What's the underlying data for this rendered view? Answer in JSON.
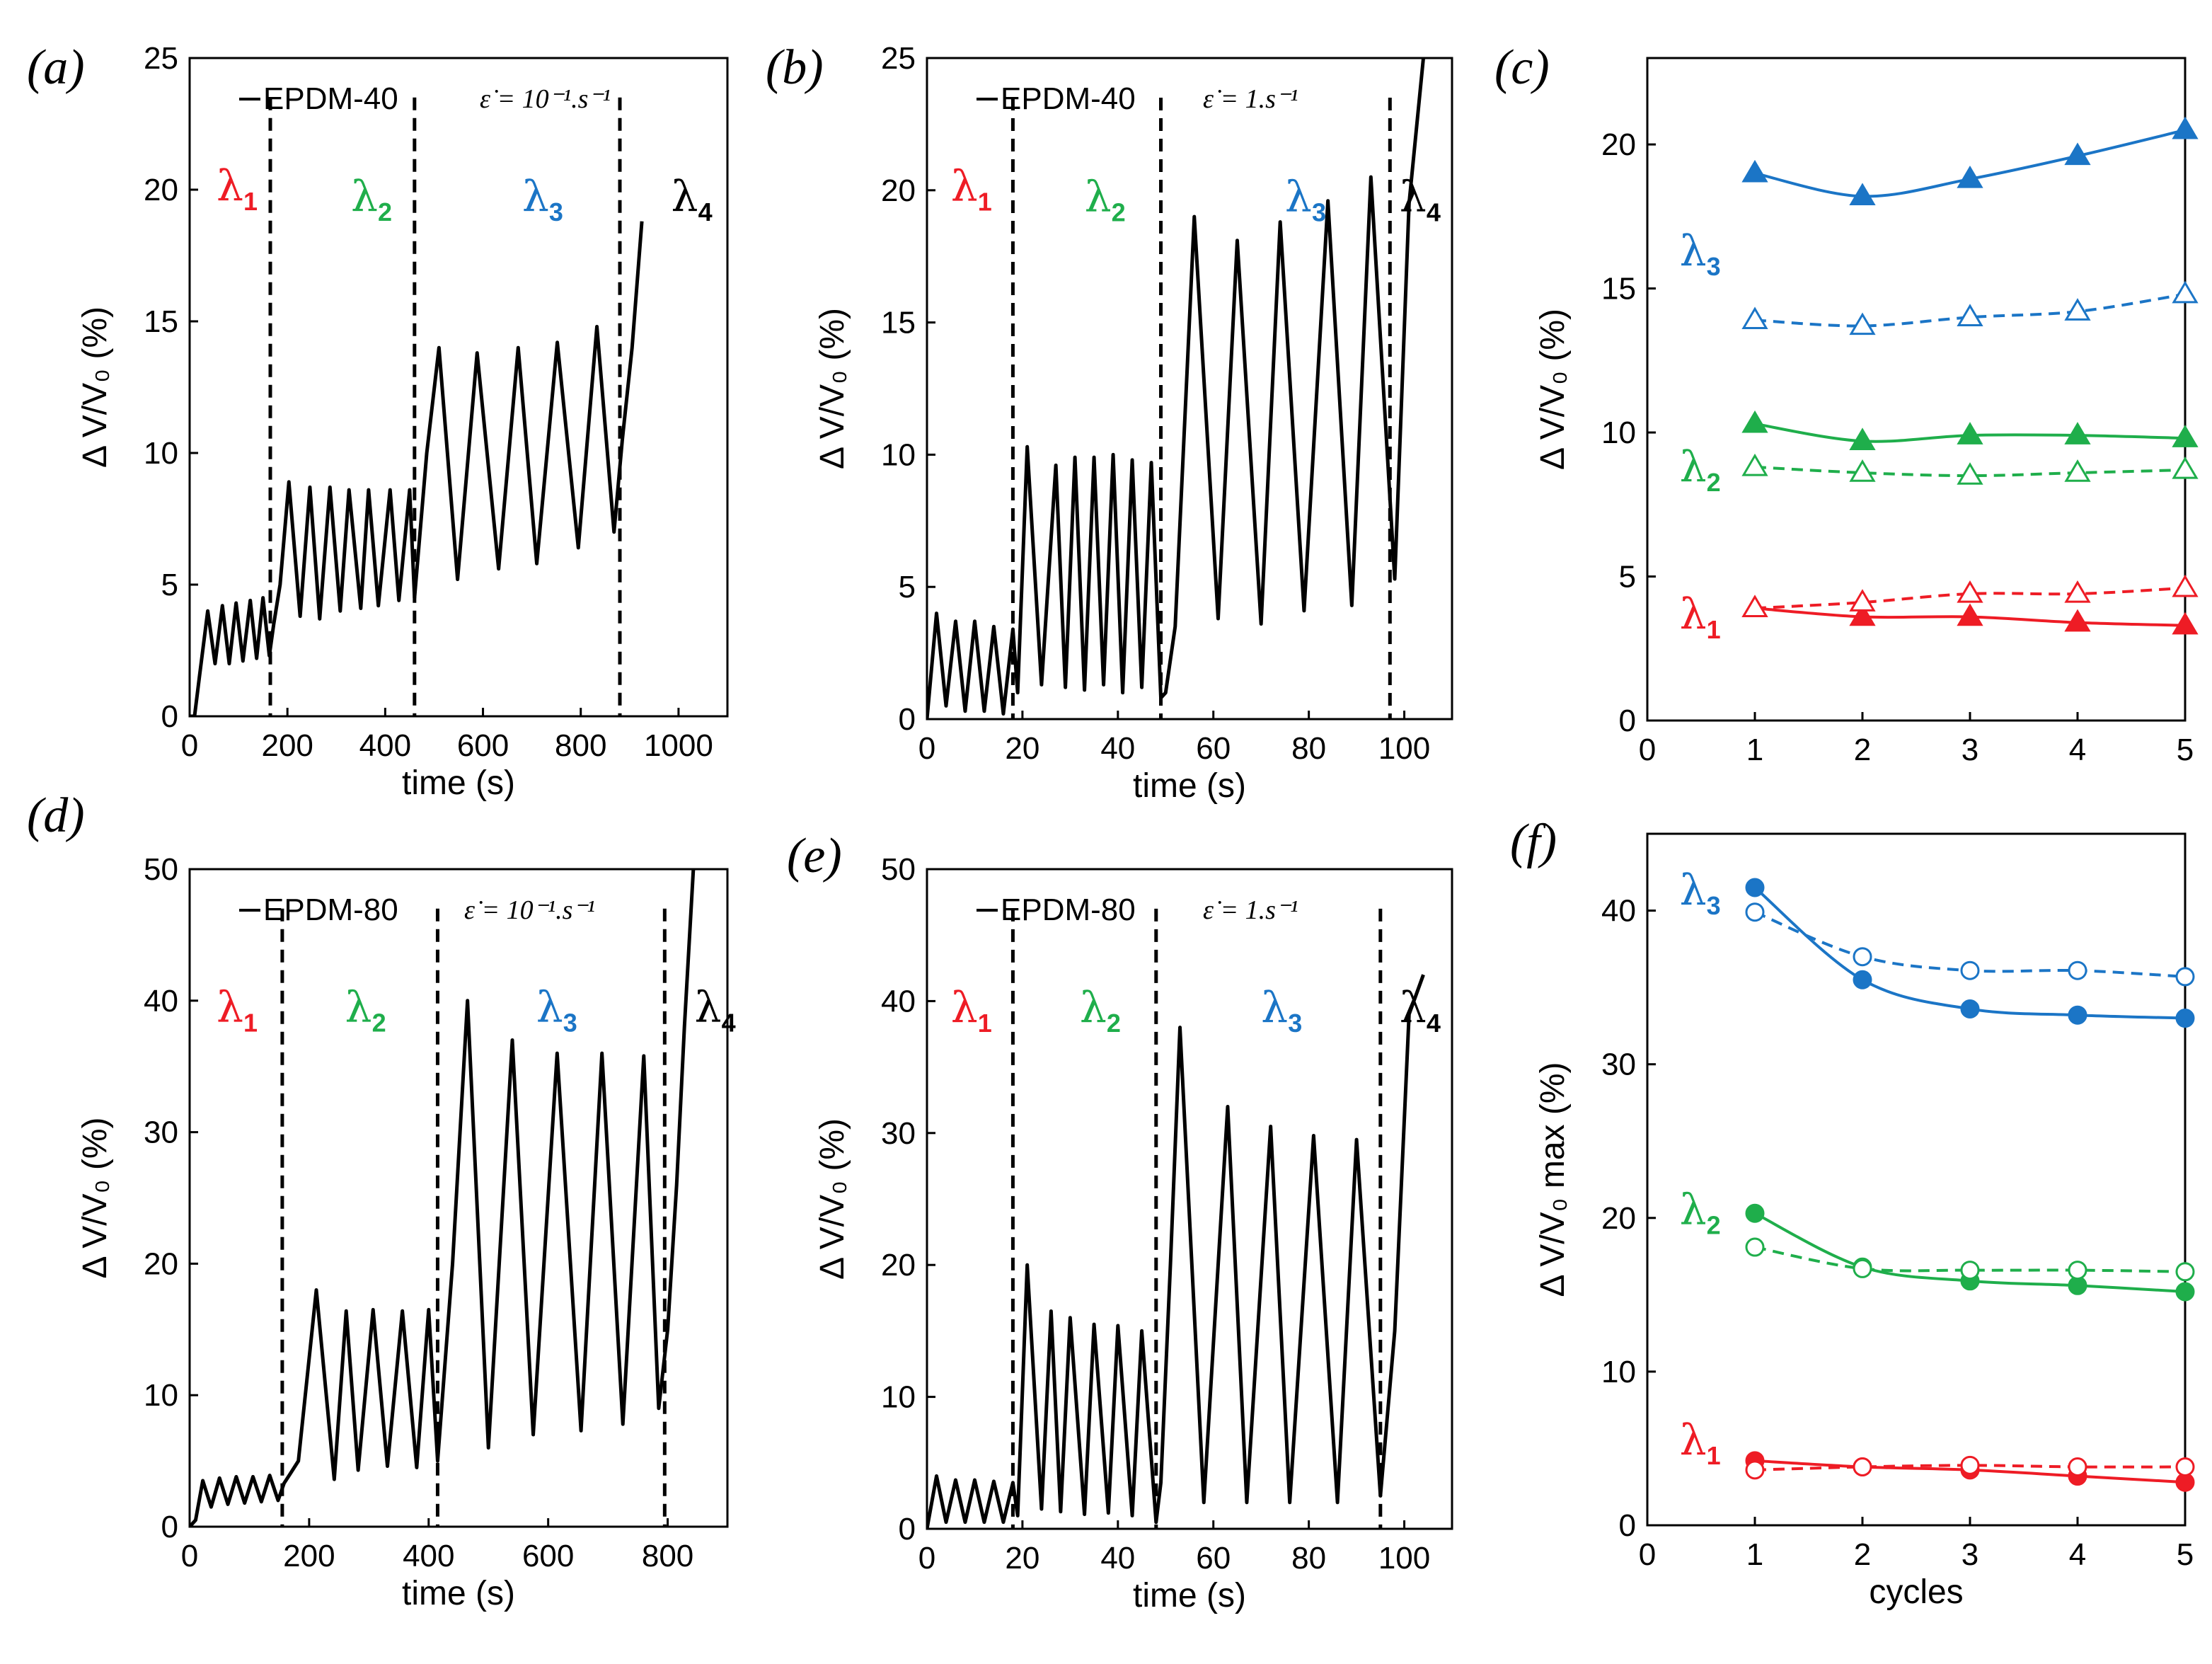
{
  "figure": {
    "colors": {
      "lambda1": "#ee1c25",
      "lambda2": "#1fae4b",
      "lambda3": "#1b75c6",
      "lambda4": "#000000",
      "trace": "#000000"
    },
    "lambda_symbol": "λ",
    "lambda_subs": [
      "1",
      "2",
      "3",
      "4"
    ]
  },
  "chart_data": [
    {
      "id": "a",
      "type": "line",
      "panel_label": "(a)",
      "legend": "EPDM-40",
      "rate_label": "ε̇ = 10⁻¹.s⁻¹",
      "xlabel": "time (s)",
      "ylabel": "Δ V/V₀ (%)",
      "xlim": [
        0,
        1100
      ],
      "ylim": [
        0,
        25
      ],
      "xticks": [
        0,
        200,
        400,
        600,
        800,
        1000
      ],
      "yticks": [
        0,
        5,
        10,
        15,
        20,
        25
      ],
      "dividers": [
        165,
        460,
        880
      ],
      "lambda_labels": [
        {
          "sub": "1",
          "x": 55,
          "y": 19.6,
          "color": "lambda1"
        },
        {
          "sub": "2",
          "x": 330,
          "y": 19.2,
          "color": "lambda2"
        },
        {
          "sub": "3",
          "x": 680,
          "y": 19.2,
          "color": "lambda3"
        },
        {
          "sub": "4",
          "x": 985,
          "y": 19.2,
          "color": "lambda4"
        }
      ],
      "series": [
        {
          "name": "EPDM-40",
          "x": [
            0,
            10,
            20,
            37,
            52,
            67,
            81,
            95,
            109,
            124,
            137,
            150,
            163,
            172,
            185,
            203,
            226,
            246,
            266,
            287,
            308,
            326,
            350,
            366,
            386,
            410,
            428,
            450,
            460,
            485,
            510,
            548,
            588,
            632,
            672,
            710,
            752,
            795,
            833,
            868,
            885,
            905,
            925
          ],
          "y": [
            0,
            0,
            1.5,
            4,
            2,
            4.2,
            2,
            4.3,
            2.1,
            4.4,
            2.2,
            4.5,
            2.3,
            3.5,
            5,
            8.9,
            3.8,
            8.7,
            3.7,
            8.7,
            4,
            8.6,
            4.1,
            8.6,
            4.2,
            8.6,
            4.4,
            8.6,
            4.5,
            10,
            14,
            5.2,
            13.8,
            5.6,
            14,
            5.8,
            14.2,
            6.4,
            14.8,
            7,
            10.5,
            14,
            18.8
          ]
        }
      ]
    },
    {
      "id": "b",
      "type": "line",
      "panel_label": "(b)",
      "legend": "EPDM-40",
      "rate_label": "ε̇ = 1.s⁻¹",
      "xlabel": "time (s)",
      "ylabel": "Δ V/V₀ (%)",
      "xlim": [
        0,
        110
      ],
      "ylim": [
        0,
        25
      ],
      "xticks": [
        0,
        20,
        40,
        60,
        80,
        100
      ],
      "yticks": [
        0,
        5,
        10,
        15,
        20,
        25
      ],
      "dividers": [
        18,
        49,
        97
      ],
      "lambda_labels": [
        {
          "sub": "1",
          "x": 5,
          "y": 19.6,
          "color": "lambda1"
        },
        {
          "sub": "2",
          "x": 33,
          "y": 19.2,
          "color": "lambda2"
        },
        {
          "sub": "3",
          "x": 75,
          "y": 19.2,
          "color": "lambda3"
        },
        {
          "sub": "4",
          "x": 99,
          "y": 19.2,
          "color": "lambda4"
        }
      ],
      "series": [
        {
          "name": "EPDM-40",
          "x": [
            0,
            2,
            4,
            6,
            8,
            10,
            12,
            14,
            16,
            18,
            19,
            21,
            24,
            27,
            29,
            31,
            33,
            35,
            37,
            39,
            41,
            43,
            45,
            47,
            49,
            50,
            52,
            56,
            61,
            65,
            70,
            74,
            79,
            84,
            89,
            93,
            98,
            101,
            104
          ],
          "y": [
            0,
            4,
            0.5,
            3.7,
            0.3,
            3.7,
            0.3,
            3.5,
            0.2,
            3.4,
            1,
            10.3,
            1.3,
            9.6,
            1.2,
            9.9,
            1.1,
            9.9,
            1.3,
            10,
            1,
            9.8,
            1.2,
            9.7,
            0.8,
            1,
            3.5,
            19,
            3.8,
            18.1,
            3.6,
            18.8,
            4.1,
            19.6,
            4.3,
            20.5,
            5.3,
            19.5,
            25
          ]
        }
      ]
    },
    {
      "id": "c",
      "type": "line",
      "xlabel": "",
      "ylabel": "Δ V/V₀ (%)",
      "xlim": [
        0,
        5
      ],
      "ylim": [
        0,
        23
      ],
      "xticks": [
        0,
        1,
        2,
        3,
        4,
        5
      ],
      "yticks": [
        0,
        5,
        10,
        15,
        20
      ],
      "lambda_labels": [
        {
          "sub": "1",
          "x": 0.3,
          "y": 3.2,
          "color": "lambda1"
        },
        {
          "sub": "2",
          "x": 0.3,
          "y": 8.3,
          "color": "lambda2"
        },
        {
          "sub": "3",
          "x": 0.3,
          "y": 15.8,
          "color": "lambda3"
        }
      ],
      "series": [
        {
          "name": "λ1 solid",
          "color": "lambda1",
          "marker": "triangle",
          "filled": true,
          "dashed": false,
          "x": [
            1,
            2,
            3,
            4,
            5
          ],
          "y": [
            3.9,
            3.6,
            3.6,
            3.4,
            3.3
          ]
        },
        {
          "name": "λ1 dashed",
          "color": "lambda1",
          "marker": "triangle",
          "filled": false,
          "dashed": true,
          "x": [
            1,
            2,
            3,
            4,
            5
          ],
          "y": [
            3.9,
            4.1,
            4.4,
            4.4,
            4.6
          ]
        },
        {
          "name": "λ2 solid",
          "color": "lambda2",
          "marker": "triangle",
          "filled": true,
          "dashed": false,
          "x": [
            1,
            2,
            3,
            4,
            5
          ],
          "y": [
            10.3,
            9.7,
            9.9,
            9.9,
            9.8
          ]
        },
        {
          "name": "λ2 dashed",
          "color": "lambda2",
          "marker": "triangle",
          "filled": false,
          "dashed": true,
          "x": [
            1,
            2,
            3,
            4,
            5
          ],
          "y": [
            8.8,
            8.6,
            8.5,
            8.6,
            8.7
          ]
        },
        {
          "name": "λ3 solid",
          "color": "lambda3",
          "marker": "triangle",
          "filled": true,
          "dashed": false,
          "x": [
            1,
            2,
            3,
            4,
            5
          ],
          "y": [
            19,
            18.2,
            18.8,
            19.6,
            20.5
          ]
        },
        {
          "name": "λ3 dashed",
          "color": "lambda3",
          "marker": "triangle",
          "filled": false,
          "dashed": true,
          "x": [
            1,
            2,
            3,
            4,
            5
          ],
          "y": [
            13.9,
            13.7,
            14,
            14.2,
            14.8
          ]
        }
      ]
    },
    {
      "id": "d",
      "type": "line",
      "panel_label": "(d)",
      "legend": "EPDM-80",
      "rate_label": "ε̇ = 10⁻¹.s⁻¹",
      "xlabel": "time (s)",
      "ylabel": "Δ V/V₀ (%)",
      "xlim": [
        0,
        900
      ],
      "ylim": [
        0,
        50
      ],
      "xticks": [
        0,
        200,
        400,
        600,
        800
      ],
      "yticks": [
        0,
        10,
        20,
        30,
        40,
        50
      ],
      "dividers": [
        155,
        415,
        795
      ],
      "lambda_labels": [
        {
          "sub": "1",
          "x": 45,
          "y": 38.4,
          "color": "lambda1"
        },
        {
          "sub": "2",
          "x": 260,
          "y": 38.4,
          "color": "lambda2"
        },
        {
          "sub": "3",
          "x": 580,
          "y": 38.4,
          "color": "lambda3"
        },
        {
          "sub": "4",
          "x": 845,
          "y": 38.4,
          "color": "lambda4"
        }
      ],
      "series": [
        {
          "name": "EPDM-80",
          "x": [
            0,
            10,
            22,
            36,
            50,
            64,
            78,
            92,
            106,
            120,
            134,
            148,
            158,
            168,
            182,
            212,
            242,
            262,
            282,
            307,
            331,
            356,
            380,
            400,
            415,
            440,
            465,
            500,
            540,
            575,
            615,
            655,
            690,
            725,
            760,
            785,
            800,
            815,
            828,
            843
          ],
          "y": [
            0,
            0.5,
            3.5,
            1.5,
            3.7,
            1.7,
            3.8,
            1.8,
            3.8,
            1.9,
            3.9,
            2,
            3.3,
            4,
            5,
            18,
            3.6,
            16.4,
            4.3,
            16.5,
            4.6,
            16.4,
            4.5,
            16.5,
            5,
            20,
            40,
            6,
            37,
            7,
            36,
            7.3,
            36,
            7.8,
            35.8,
            9,
            15,
            26,
            38,
            50
          ]
        }
      ]
    },
    {
      "id": "e",
      "type": "line",
      "panel_label": "(e)",
      "legend": "EPDM-80",
      "rate_label": "ε̇ = 1.s⁻¹",
      "xlabel": "time (s)",
      "ylabel": "Δ V/V₀ (%)",
      "xlim": [
        0,
        110
      ],
      "ylim": [
        0,
        50
      ],
      "xticks": [
        0,
        20,
        40,
        60,
        80,
        100
      ],
      "yticks": [
        0,
        10,
        20,
        30,
        40,
        50
      ],
      "dividers": [
        18,
        48,
        95
      ],
      "lambda_labels": [
        {
          "sub": "1",
          "x": 5,
          "y": 38.4,
          "color": "lambda1"
        },
        {
          "sub": "2",
          "x": 32,
          "y": 38.4,
          "color": "lambda2"
        },
        {
          "sub": "3",
          "x": 70,
          "y": 38.4,
          "color": "lambda3"
        },
        {
          "sub": "4",
          "x": 99,
          "y": 38.4,
          "color": "lambda4"
        }
      ],
      "series": [
        {
          "name": "EPDM-80",
          "x": [
            0,
            2,
            4,
            6,
            8,
            10,
            12,
            14,
            16,
            18,
            19,
            21,
            24,
            26,
            28,
            30,
            33,
            35,
            38,
            40,
            43,
            45,
            48,
            49,
            51,
            53,
            58,
            63,
            67,
            72,
            76,
            81,
            86,
            90,
            95,
            98,
            101,
            104
          ],
          "y": [
            0,
            4,
            0.5,
            3.7,
            0.5,
            3.7,
            0.5,
            3.6,
            0.5,
            3.5,
            1,
            20,
            1.5,
            16.5,
            1.3,
            16,
            1.1,
            15.5,
            1.2,
            15.4,
            1,
            15,
            0.5,
            3.5,
            20,
            38,
            2,
            32,
            2,
            30.5,
            2,
            29.8,
            2,
            29.5,
            2.5,
            15,
            39,
            42
          ]
        }
      ]
    },
    {
      "id": "f",
      "type": "line",
      "panel_label": "(f)",
      "xlabel": "cycles",
      "ylabel": "Δ V/V₀ max (%)",
      "xlim": [
        0,
        5
      ],
      "ylim": [
        0,
        45
      ],
      "xticks": [
        0,
        1,
        2,
        3,
        4,
        5
      ],
      "yticks": [
        0,
        10,
        20,
        30,
        40
      ],
      "lambda_labels": [
        {
          "sub": "1",
          "x": 0.3,
          "y": 4.6,
          "color": "lambda1"
        },
        {
          "sub": "2",
          "x": 0.3,
          "y": 19.6,
          "color": "lambda2"
        },
        {
          "sub": "3",
          "x": 0.3,
          "y": 40.4,
          "color": "lambda3"
        }
      ],
      "series": [
        {
          "name": "λ1 solid",
          "color": "lambda1",
          "marker": "circle",
          "filled": true,
          "dashed": false,
          "x": [
            1,
            2,
            3,
            4,
            5
          ],
          "y": [
            4.2,
            3.8,
            3.6,
            3.2,
            2.8
          ]
        },
        {
          "name": "λ1 dashed",
          "color": "lambda1",
          "marker": "circle",
          "filled": false,
          "dashed": true,
          "x": [
            1,
            2,
            3,
            4,
            5
          ],
          "y": [
            3.6,
            3.8,
            3.9,
            3.8,
            3.8
          ]
        },
        {
          "name": "λ2 solid",
          "color": "lambda2",
          "marker": "circle",
          "filled": true,
          "dashed": false,
          "x": [
            1,
            2,
            3,
            4,
            5
          ],
          "y": [
            20.3,
            16.8,
            15.9,
            15.6,
            15.2
          ]
        },
        {
          "name": "λ2 dashed",
          "color": "lambda2",
          "marker": "circle",
          "filled": false,
          "dashed": true,
          "x": [
            1,
            2,
            3,
            4,
            5
          ],
          "y": [
            18.1,
            16.7,
            16.6,
            16.6,
            16.5
          ]
        },
        {
          "name": "λ3 solid",
          "color": "lambda3",
          "marker": "circle",
          "filled": true,
          "dashed": false,
          "x": [
            1,
            2,
            3,
            4,
            5
          ],
          "y": [
            41.5,
            35.5,
            33.6,
            33.2,
            33
          ]
        },
        {
          "name": "λ3 dashed",
          "color": "lambda3",
          "marker": "circle",
          "filled": false,
          "dashed": true,
          "x": [
            1,
            2,
            3,
            4,
            5
          ],
          "y": [
            39.9,
            37,
            36.1,
            36.1,
            35.7
          ]
        }
      ]
    }
  ]
}
